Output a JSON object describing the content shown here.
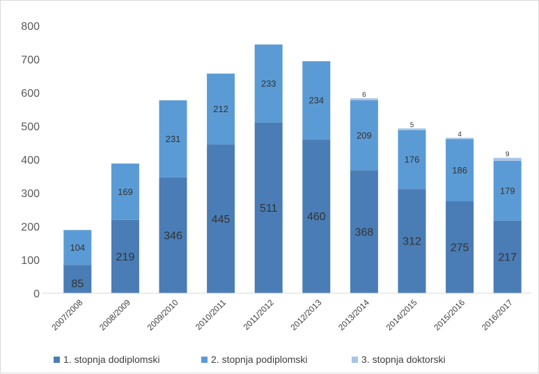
{
  "chart_data": {
    "type": "bar",
    "stacked": true,
    "categories": [
      "2007/2008",
      "2008/2009",
      "2009/2010",
      "2010/2011",
      "2011/2012",
      "2012/2013",
      "2013/2014",
      "2014/2015",
      "2015/2016",
      "2016/2017"
    ],
    "series": [
      {
        "name": "1. stopnja dodiplomski",
        "color": "#4a7db5",
        "values": [
          85,
          219,
          346,
          445,
          511,
          460,
          368,
          312,
          275,
          217
        ]
      },
      {
        "name": "2. stopnja podiplomski",
        "color": "#5b9bd5",
        "values": [
          104,
          169,
          231,
          212,
          233,
          234,
          209,
          176,
          186,
          179
        ]
      },
      {
        "name": "3. stopnja doktorski",
        "color": "#a9c4e6",
        "values": [
          0,
          0,
          0,
          0,
          0,
          0,
          6,
          5,
          4,
          9
        ]
      }
    ],
    "ylim": [
      0,
      800
    ],
    "yticks": [
      0,
      100,
      200,
      300,
      400,
      500,
      600,
      700,
      800
    ],
    "grid": false,
    "legend": "bottom"
  }
}
